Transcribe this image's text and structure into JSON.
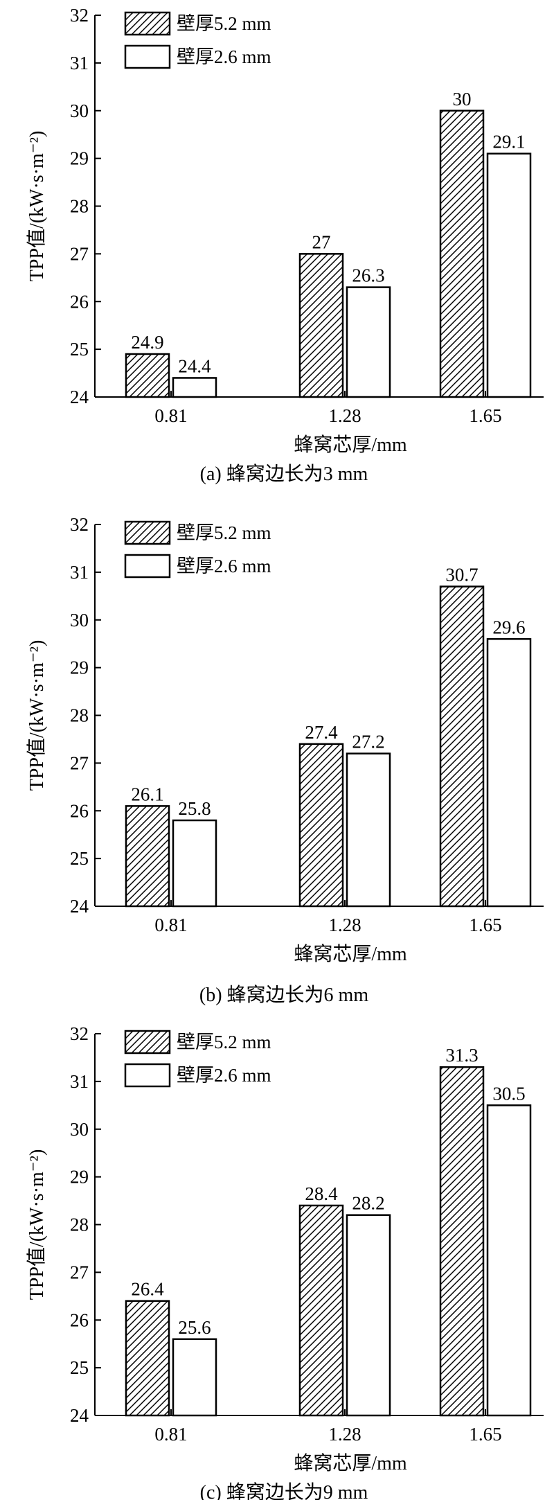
{
  "chart_data": [
    {
      "type": "bar",
      "caption": "(a) 蜂窝边长为3 mm",
      "xlabel": "蜂窝芯厚/mm",
      "ylabel": "TPP值/(kW·s·m⁻²)",
      "categories": [
        "0.81",
        "1.28",
        "1.65"
      ],
      "ylim": [
        24,
        32
      ],
      "yticks": [
        "24",
        "25",
        "26",
        "27",
        "28",
        "29",
        "30",
        "31",
        "32"
      ],
      "series": [
        {
          "name": "壁厚5.2 mm",
          "values": [
            24.9,
            27,
            30
          ],
          "labels": [
            "24.9",
            "27",
            "30"
          ]
        },
        {
          "name": "壁厚2.6 mm",
          "values": [
            24.4,
            26.3,
            29.1
          ],
          "labels": [
            "24.4",
            "26.3",
            "29.1"
          ]
        }
      ],
      "legend": "top-left",
      "grid": false
    },
    {
      "type": "bar",
      "caption": "(b) 蜂窝边长为6 mm",
      "xlabel": "蜂窝芯厚/mm",
      "ylabel": "TPP值/(kW·s·m⁻²)",
      "categories": [
        "0.81",
        "1.28",
        "1.65"
      ],
      "ylim": [
        24,
        32
      ],
      "yticks": [
        "24",
        "25",
        "26",
        "27",
        "28",
        "29",
        "30",
        "31",
        "32"
      ],
      "series": [
        {
          "name": "壁厚5.2 mm",
          "values": [
            26.1,
            27.4,
            30.7
          ],
          "labels": [
            "26.1",
            "27.4",
            "30.7"
          ]
        },
        {
          "name": "壁厚2.6 mm",
          "values": [
            25.8,
            27.2,
            29.6
          ],
          "labels": [
            "25.8",
            "27.2",
            "29.6"
          ]
        }
      ],
      "legend": "top-left",
      "grid": false
    },
    {
      "type": "bar",
      "caption": "(c) 蜂窝边长为9 mm",
      "xlabel": "蜂窝芯厚/mm",
      "ylabel": "TPP值/(kW·s·m⁻²)",
      "categories": [
        "0.81",
        "1.28",
        "1.65"
      ],
      "ylim": [
        24,
        32
      ],
      "yticks": [
        "24",
        "25",
        "26",
        "27",
        "28",
        "29",
        "30",
        "31",
        "32"
      ],
      "series": [
        {
          "name": "壁厚5.2 mm",
          "values": [
            26.4,
            28.4,
            31.3
          ],
          "labels": [
            "26.4",
            "28.4",
            "31.3"
          ]
        },
        {
          "name": "壁厚2.6 mm",
          "values": [
            25.6,
            28.2,
            30.5
          ],
          "labels": [
            "25.6",
            "28.2",
            "30.5"
          ]
        }
      ],
      "legend": "top-left",
      "grid": false
    }
  ]
}
